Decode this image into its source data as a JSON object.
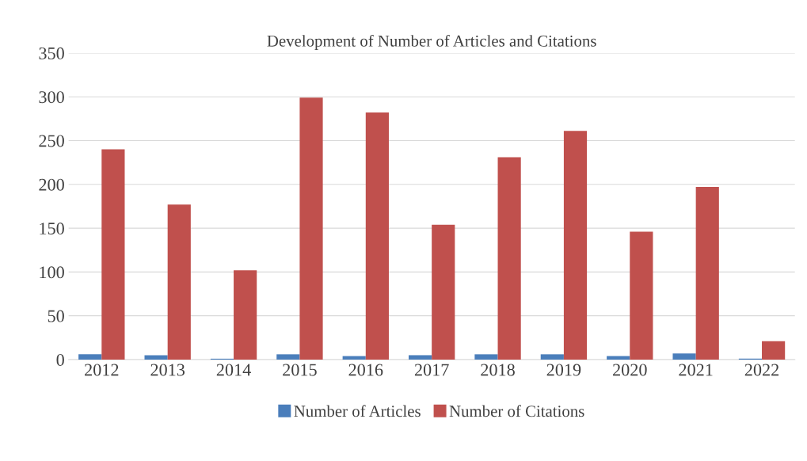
{
  "chart_data": {
    "type": "bar",
    "title": "Development of Number of Articles and Citations",
    "categories": [
      "2012",
      "2013",
      "2014",
      "2015",
      "2016",
      "2017",
      "2018",
      "2019",
      "2020",
      "2021",
      "2022"
    ],
    "series": [
      {
        "name": "Number of Articles",
        "color": "#4a7ebb",
        "values": [
          6,
          5,
          1,
          6,
          4,
          5,
          6,
          6,
          4,
          7,
          1
        ]
      },
      {
        "name": "Number of Citations",
        "color": "#c0504d",
        "values": [
          240,
          177,
          102,
          299,
          282,
          154,
          231,
          261,
          146,
          197,
          21
        ]
      }
    ],
    "ylim": [
      0,
      350
    ],
    "yticks": [
      0,
      50,
      100,
      150,
      200,
      250,
      300,
      350
    ],
    "grid": "y",
    "legend": "bottom"
  }
}
